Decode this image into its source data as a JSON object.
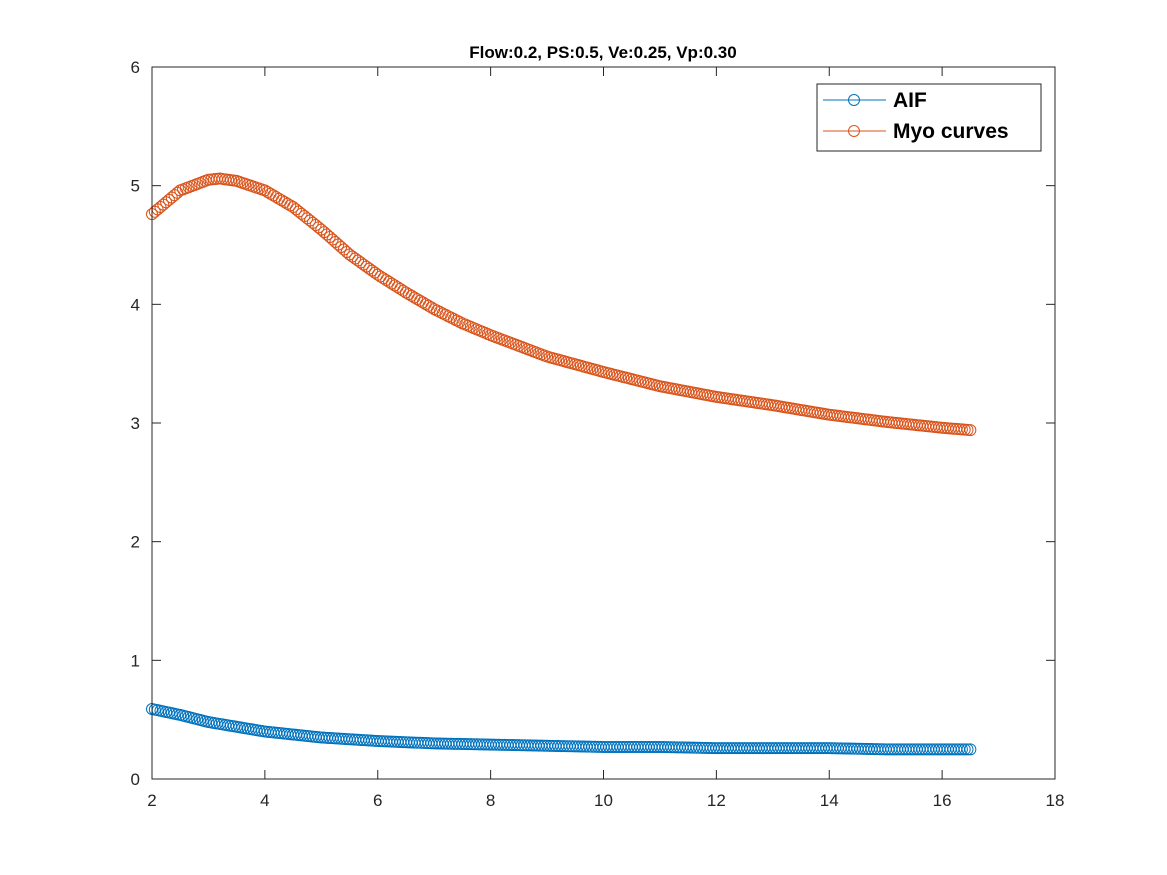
{
  "chart_data": {
    "type": "scatter",
    "title": "Flow:0.2, PS:0.5, Ve:0.25, Vp:0.30",
    "xlabel": "",
    "ylabel": "",
    "xlim": [
      2,
      18
    ],
    "ylim": [
      0,
      6
    ],
    "xticks": [
      2,
      4,
      6,
      8,
      10,
      12,
      14,
      16,
      18
    ],
    "yticks": [
      0,
      1,
      2,
      3,
      4,
      5,
      6
    ],
    "grid": false,
    "legend_position": "top-right",
    "marker": "circle",
    "series": [
      {
        "name": "AIF",
        "color": "#0072BD",
        "x": [
          2.0,
          2.5,
          3.0,
          3.5,
          4.0,
          5.0,
          6.0,
          7.0,
          8.0,
          9.0,
          10.0,
          11.0,
          12.0,
          13.0,
          14.0,
          15.0,
          16.0,
          16.5
        ],
        "y": [
          0.59,
          0.54,
          0.48,
          0.44,
          0.4,
          0.35,
          0.32,
          0.3,
          0.29,
          0.28,
          0.27,
          0.27,
          0.26,
          0.26,
          0.26,
          0.25,
          0.25,
          0.25
        ]
      },
      {
        "name": "Myo curves",
        "color": "#D95319",
        "x": [
          2.0,
          2.5,
          3.0,
          3.2,
          3.5,
          4.0,
          4.5,
          5.0,
          5.5,
          6.0,
          6.5,
          7.0,
          7.5,
          8.0,
          9.0,
          10.0,
          11.0,
          12.0,
          13.0,
          14.0,
          15.0,
          16.0,
          16.5
        ],
        "y": [
          4.76,
          4.96,
          5.05,
          5.06,
          5.04,
          4.96,
          4.82,
          4.63,
          4.42,
          4.25,
          4.1,
          3.96,
          3.84,
          3.74,
          3.56,
          3.43,
          3.31,
          3.22,
          3.15,
          3.07,
          3.01,
          2.96,
          2.94
        ]
      }
    ]
  }
}
